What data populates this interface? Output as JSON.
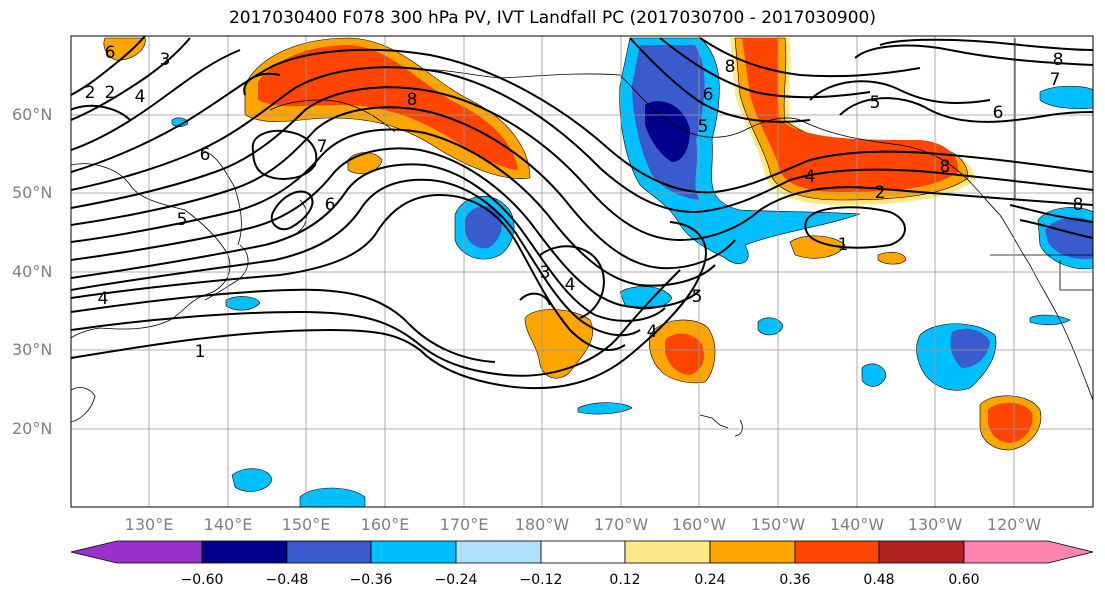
{
  "title": "2017030400 F078 300 hPa PV, IVT Landfall PC (2017030700 - 2017030900)",
  "lat_labels": [
    "60°N",
    "50°N",
    "40°N",
    "30°N",
    "20°N"
  ],
  "lon_labels": [
    "130°E",
    "140°E",
    "150°E",
    "160°E",
    "170°E",
    "180°W",
    "170°W",
    "160°W",
    "150°W",
    "140°W",
    "130°W",
    "120°W"
  ],
  "colorbar": {
    "ticks": [
      "−0.60",
      "−0.48",
      "−0.36",
      "−0.24",
      "−0.12",
      "0.12",
      "0.24",
      "0.36",
      "0.48",
      "0.60"
    ],
    "colors": [
      "#9932cc",
      "#00008b",
      "#3a5bcd",
      "#00bfff",
      "#b0e0ff",
      "#ffffff",
      "#ffe88a",
      "#ffa500",
      "#ff4500",
      "#b22222",
      "#ff85b0"
    ]
  },
  "contour_labels": [
    "6",
    "3",
    "4",
    "2",
    "2",
    "6",
    "7",
    "5",
    "8",
    "6",
    "4",
    "1",
    "3",
    "4",
    "5",
    "4",
    "1",
    "8",
    "6",
    "5",
    "4",
    "2",
    "8",
    "5",
    "7",
    "6",
    "8",
    "8"
  ],
  "fill_colors": {
    "pos_light": "#ffe88a",
    "pos_mid": "#ffa500",
    "pos_high": "#ff4500",
    "pos_max": "#b22222",
    "neg_light": "#00bfff",
    "neg_mid": "#3a5bcd",
    "neg_high": "#00008b"
  }
}
